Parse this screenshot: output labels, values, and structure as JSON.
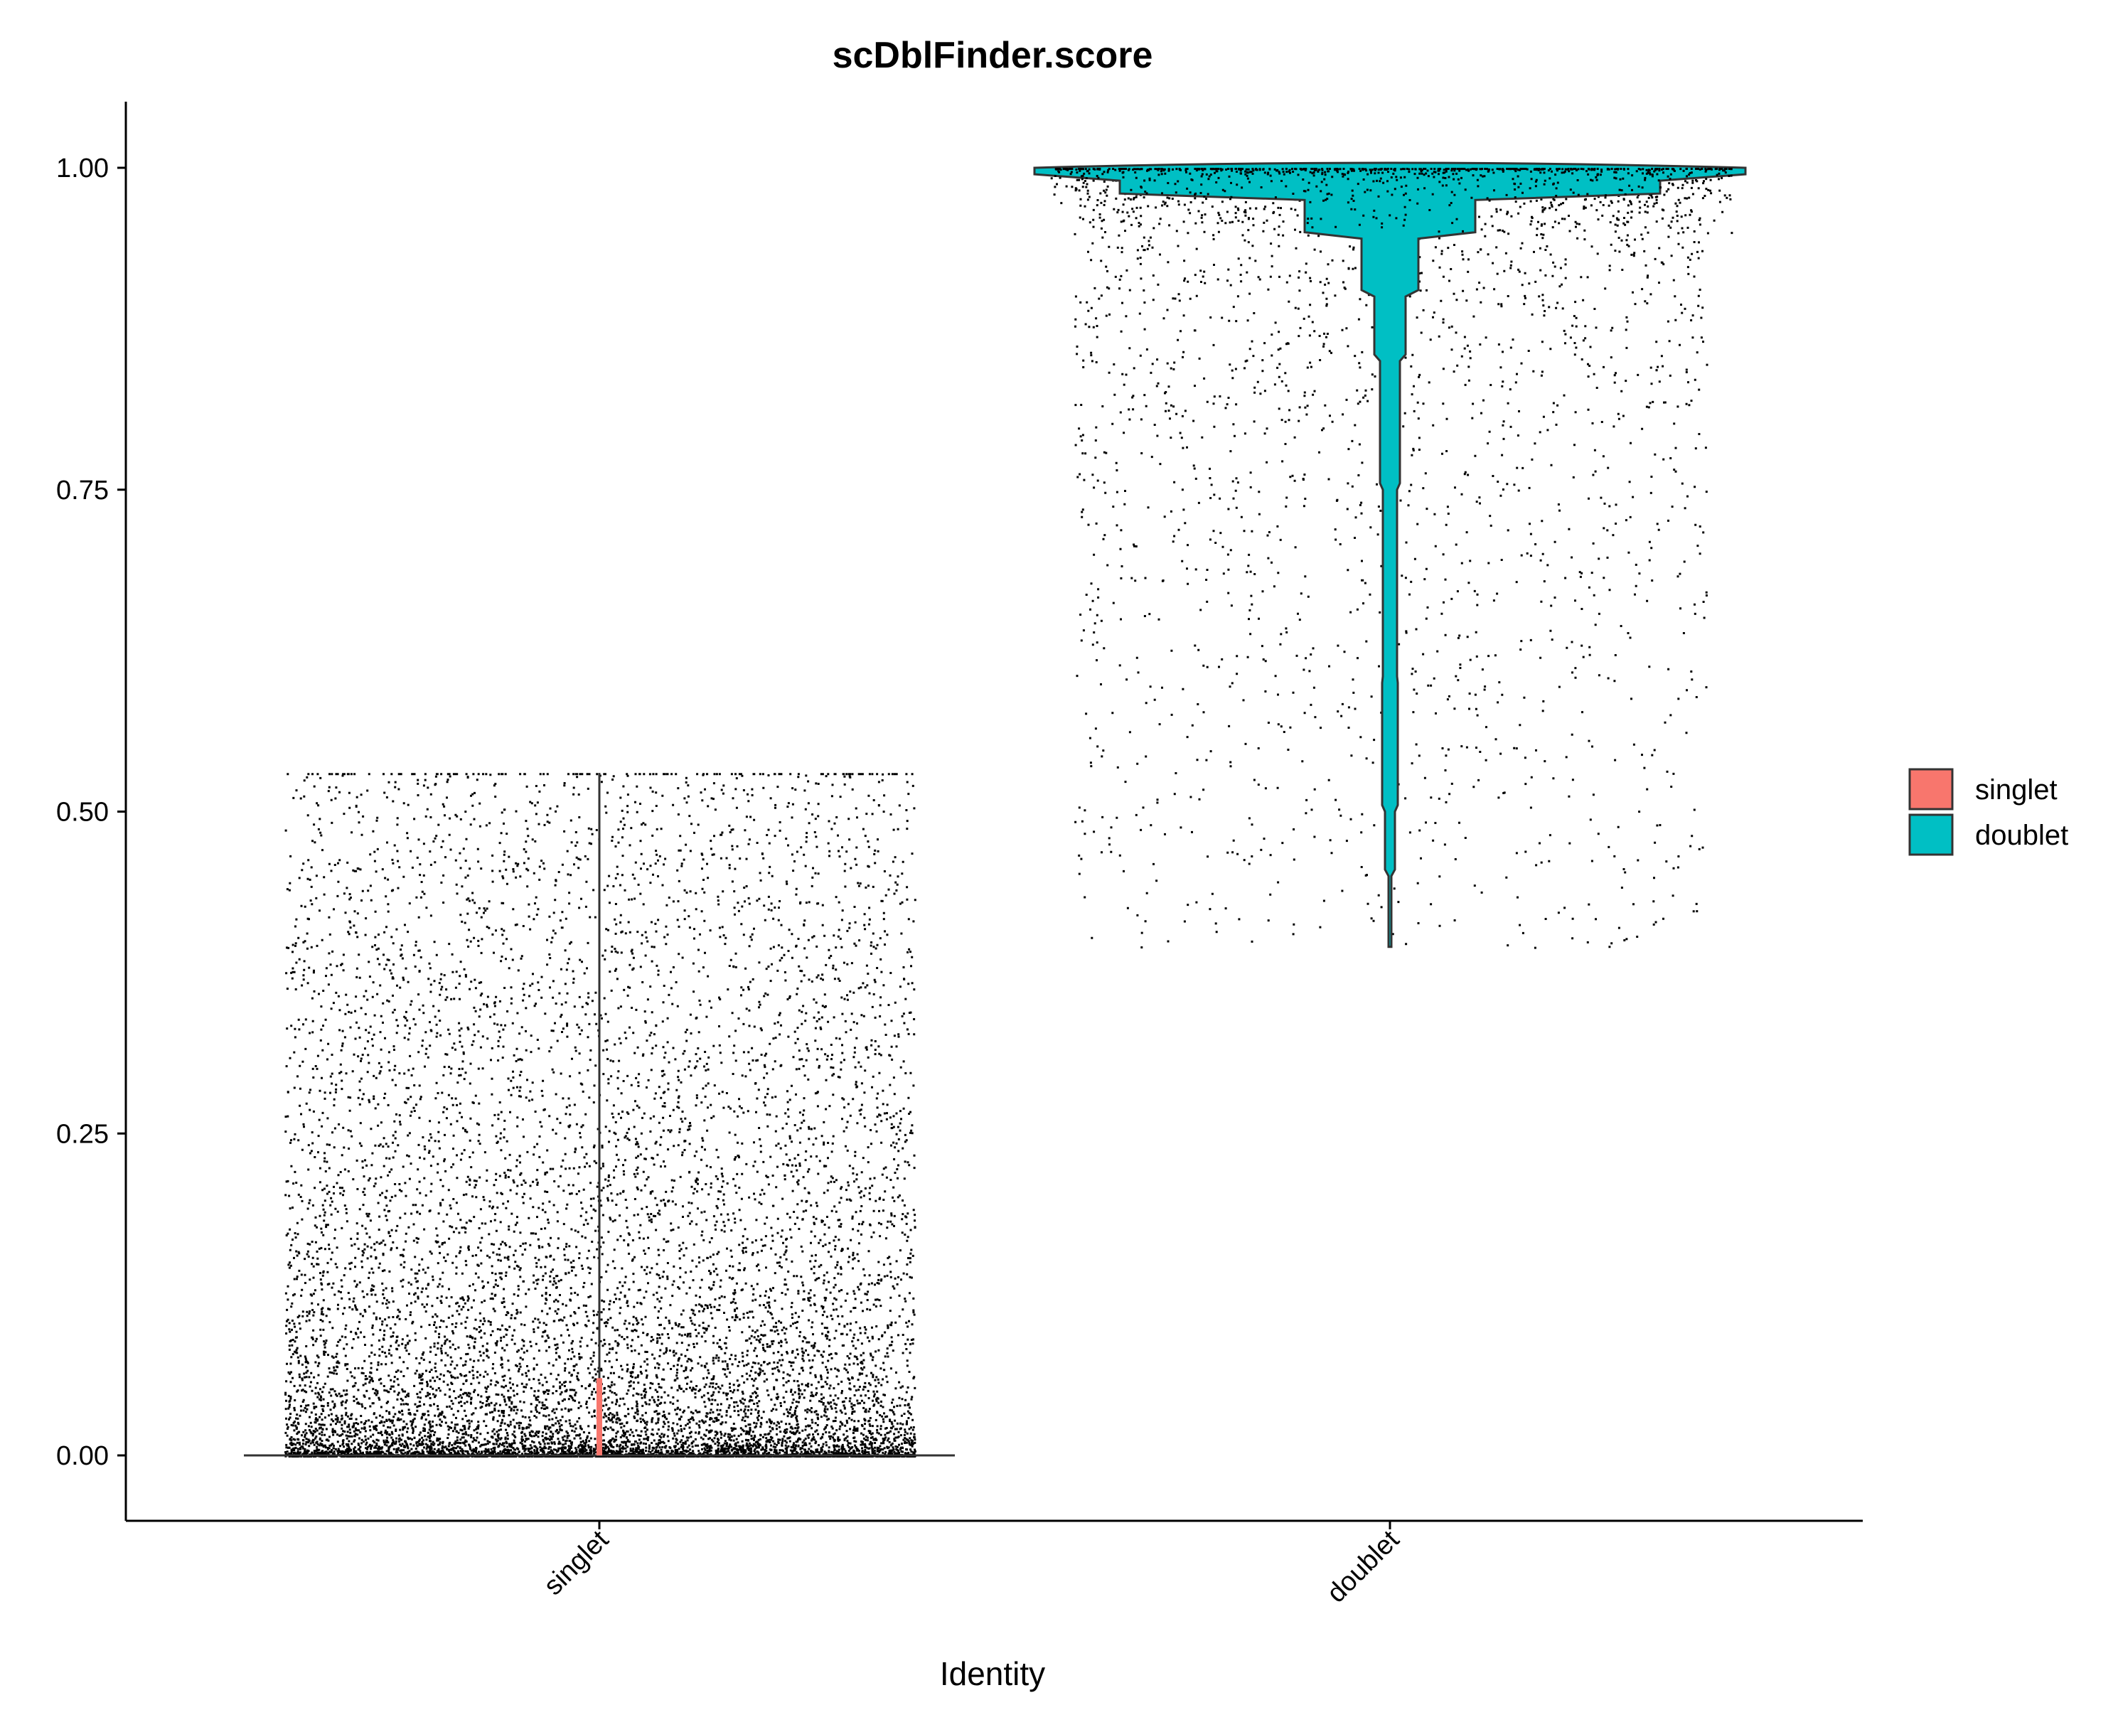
{
  "chart_data": {
    "type": "violin",
    "title": "scDblFinder.score",
    "xlabel": "Identity",
    "ylabel": "",
    "ylim": [
      -0.05,
      1.05
    ],
    "yticks": [
      "0.00",
      "0.25",
      "0.50",
      "0.75",
      "1.00"
    ],
    "categories": [
      "singlet",
      "doublet"
    ],
    "grid": false,
    "legend_position": "right",
    "legend": [
      {
        "label": "singlet",
        "color": "#F8766D"
      },
      {
        "label": "doublet",
        "color": "#00BFC4"
      }
    ],
    "series": [
      {
        "category": "singlet",
        "color": "#F8766D",
        "min": 0.0,
        "max": 0.53,
        "points_shown": true
      },
      {
        "category": "doublet",
        "color": "#00BFC4",
        "min": 0.395,
        "max": 1.0,
        "points_shown": true
      }
    ]
  }
}
